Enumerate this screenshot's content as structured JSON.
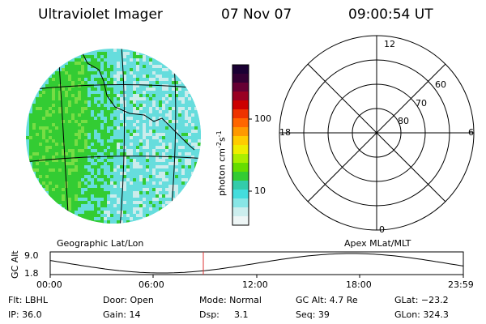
{
  "header": {
    "instrument": "Ultraviolet Imager",
    "date": "07 Nov 07",
    "time": "09:00:54 UT"
  },
  "image_panel": {
    "caption": "Geographic Lat/Lon",
    "colors": {
      "green": "#33cc33",
      "light_green": "#77dd44",
      "cyan": "#66dddd",
      "pale": "#ccecec",
      "grid": "#000000"
    }
  },
  "colorbar": {
    "unit_prefix": "photon cm",
    "exp1": "-2",
    "mid": "s",
    "exp2": "-1",
    "ticks": [
      "100",
      "10"
    ]
  },
  "polar_panel": {
    "caption": "Apex MLat/MLT",
    "mlt_labels": {
      "top": "12",
      "left": "18",
      "right": "6",
      "bottom": "0"
    },
    "lat_labels": [
      "60",
      "70",
      "80"
    ]
  },
  "alt_plot": {
    "ylabel": "GC Alt",
    "yticks": [
      "9.0",
      "1.8"
    ],
    "xticks": [
      "00:00",
      "06:00",
      "12:00",
      "18:00",
      "23:59"
    ],
    "marker_color": "#dd3333"
  },
  "status": {
    "flt": "Flt: LBHL",
    "ip": "IP: 36.0",
    "door": "Door: Open",
    "gain": "Gain: 14",
    "mode": "Mode: Normal",
    "dsp": "Dsp:",
    "dsp_val": "3.1",
    "gcalt": "GC Alt: 4.7 Re",
    "seq": "Seq: 39",
    "glat": "GLat: −23.2",
    "glon": "GLon: 324.3"
  }
}
